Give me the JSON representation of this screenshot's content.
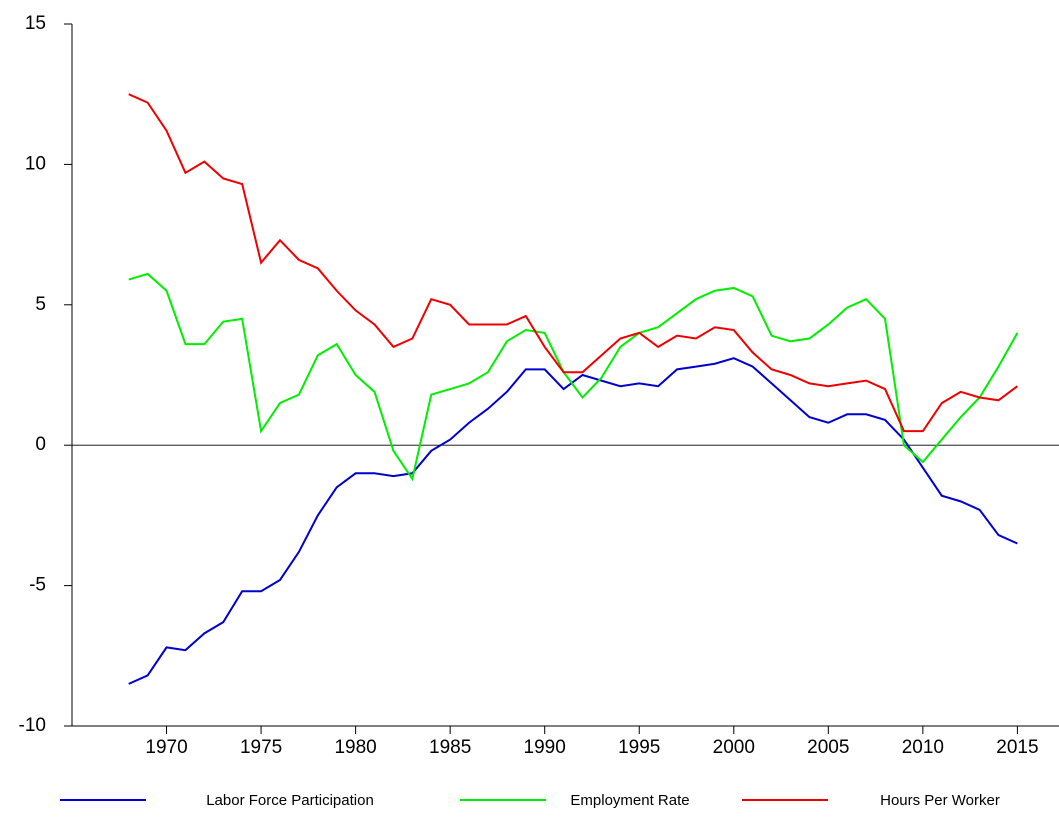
{
  "chart_data": {
    "type": "line",
    "x": [
      1968,
      1969,
      1970,
      1971,
      1972,
      1973,
      1974,
      1975,
      1976,
      1977,
      1978,
      1979,
      1980,
      1981,
      1982,
      1983,
      1984,
      1985,
      1986,
      1987,
      1988,
      1989,
      1990,
      1991,
      1992,
      1993,
      1994,
      1995,
      1996,
      1997,
      1998,
      1999,
      2000,
      2001,
      2002,
      2003,
      2004,
      2005,
      2006,
      2007,
      2008,
      2009,
      2010,
      2011,
      2012,
      2013,
      2014,
      2015
    ],
    "series": [
      {
        "name": "Labor Force Participation",
        "color": "#0000cc",
        "values": [
          -8.5,
          -8.2,
          -7.2,
          -7.3,
          -6.7,
          -6.3,
          -5.2,
          -5.2,
          -4.8,
          -3.8,
          -2.5,
          -1.5,
          -1.0,
          -1.0,
          -1.1,
          -1.0,
          -0.2,
          0.2,
          0.8,
          1.3,
          1.9,
          2.7,
          2.7,
          2.0,
          2.5,
          2.3,
          2.1,
          2.2,
          2.1,
          2.7,
          2.8,
          2.9,
          3.1,
          2.8,
          2.2,
          1.6,
          1.0,
          0.8,
          1.1,
          1.1,
          0.9,
          0.2,
          -0.8,
          -1.8,
          -2.0,
          -2.3,
          -3.2,
          -3.5
        ]
      },
      {
        "name": "Employment Rate",
        "color": "#00ee00",
        "values": [
          5.9,
          6.1,
          5.5,
          3.6,
          3.6,
          4.4,
          4.5,
          0.5,
          1.5,
          1.8,
          3.2,
          3.6,
          2.5,
          1.9,
          -0.2,
          -1.2,
          1.8,
          2.0,
          2.2,
          2.6,
          3.7,
          4.1,
          4.0,
          2.6,
          1.7,
          2.4,
          3.5,
          4.0,
          4.2,
          4.7,
          5.2,
          5.5,
          5.6,
          5.3,
          3.9,
          3.7,
          3.8,
          4.3,
          4.9,
          5.2,
          4.5,
          0.0,
          -0.6,
          0.2,
          1.0,
          1.7,
          2.8,
          4.0
        ]
      },
      {
        "name": "Hours Per Worker",
        "color": "#ee0000",
        "values": [
          12.5,
          12.2,
          11.2,
          9.7,
          10.1,
          9.5,
          9.3,
          6.5,
          7.3,
          6.6,
          6.3,
          5.5,
          4.8,
          4.3,
          3.5,
          3.8,
          5.2,
          5.0,
          4.3,
          4.3,
          4.3,
          4.6,
          3.5,
          2.6,
          2.6,
          3.2,
          3.8,
          4.0,
          3.5,
          3.9,
          3.8,
          4.2,
          4.1,
          3.3,
          2.7,
          2.5,
          2.2,
          2.1,
          2.2,
          2.3,
          2.0,
          0.5,
          0.5,
          1.5,
          1.9,
          1.7,
          1.6,
          2.1
        ]
      }
    ],
    "xlim": [
      1965,
      2017.2
    ],
    "xticks": [
      1970,
      1975,
      1980,
      1985,
      1990,
      1995,
      2000,
      2005,
      2010,
      2015
    ],
    "ylim": [
      -10,
      15
    ],
    "yticks": [
      -10,
      -5,
      0,
      5,
      10,
      15
    ],
    "zero_line": true,
    "legend": "bottom"
  }
}
